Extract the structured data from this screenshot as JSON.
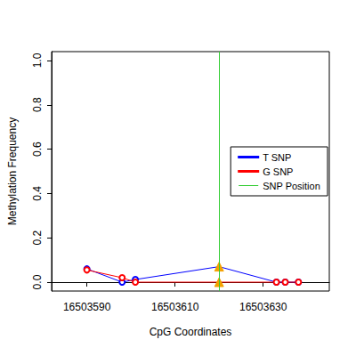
{
  "chart_data": {
    "type": "line",
    "x_label": "CpG Coordinates",
    "y_label": "Methylation Frequency",
    "x": [
      16503590,
      16503598,
      16503601,
      16503620,
      16503633,
      16503635,
      16503638
    ],
    "series": [
      {
        "name": "T SNP",
        "color": "#0000ff",
        "marker": "circle",
        "values": [
          0.06,
          0,
          0.012,
          0.07,
          0,
          0,
          0
        ]
      },
      {
        "name": "G SNP",
        "color": "#ff0000",
        "marker": "circle",
        "values": [
          0.055,
          0.02,
          0,
          0,
          0,
          0,
          0
        ]
      },
      {
        "name": "SNP Position",
        "color": "#33cc33",
        "type": "vline",
        "x": [
          16503620
        ]
      }
    ],
    "xlim": [
      16503582,
      16503645
    ],
    "xticks": [
      16503590,
      16503610,
      16503630
    ],
    "ylim": [
      -0.04,
      1.04
    ],
    "yticks": [
      {
        "value": 0,
        "label": "0.0"
      },
      0.2,
      0.4,
      0.6,
      0.8,
      {
        "value": 1,
        "label": "1.0"
      }
    ],
    "grid": false,
    "legend": "right"
  }
}
